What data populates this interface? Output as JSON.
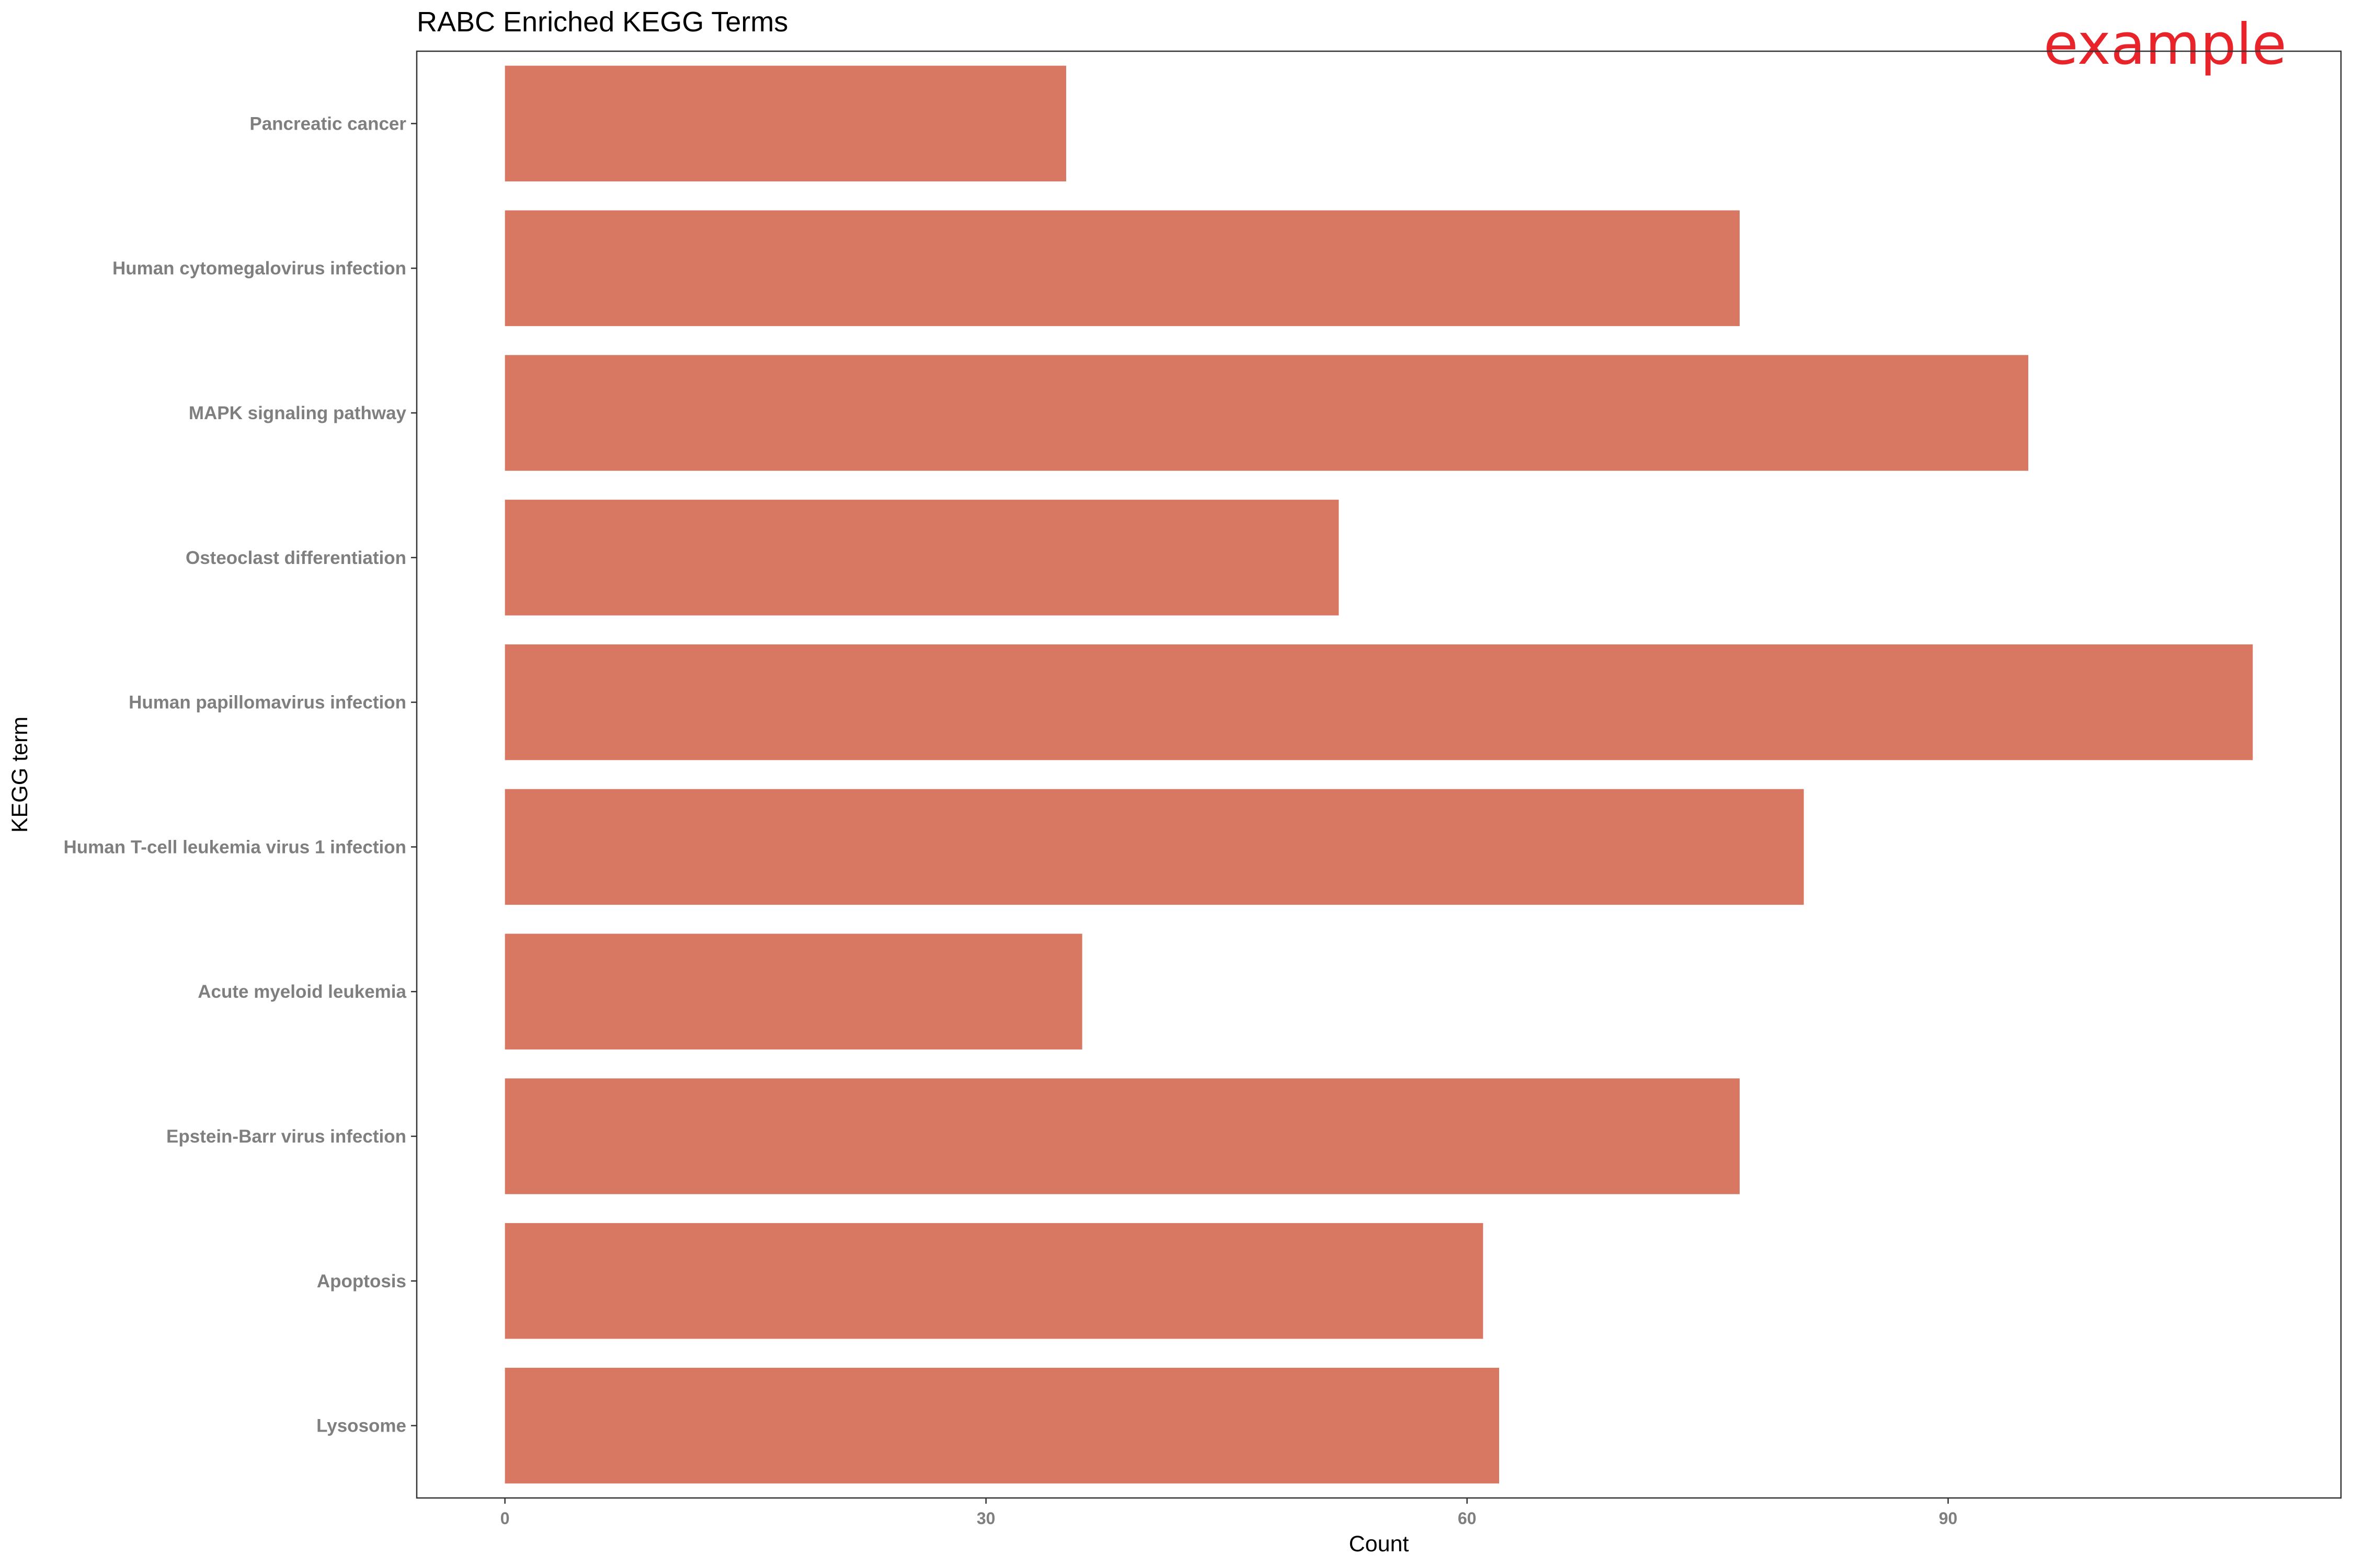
{
  "chart_data": {
    "type": "bar",
    "orientation": "horizontal",
    "title": "RABC Enriched KEGG Terms",
    "xlabel": "Count",
    "ylabel": "KEGG term",
    "categories": [
      "Pancreatic cancer",
      "Human cytomegalovirus infection",
      "MAPK signaling pathway",
      "Osteoclast differentiation",
      "Human papillomavirus infection",
      "Human T-cell leukemia virus 1 infection",
      "Acute myeloid leukemia",
      "Epstein-Barr virus infection",
      "Apoptosis",
      "Lysosome"
    ],
    "values": [
      35,
      77,
      95,
      52,
      109,
      81,
      36,
      77,
      61,
      62
    ],
    "xlim": [
      -5.5,
      114.5
    ],
    "xticks": [
      0,
      30,
      60,
      90
    ],
    "grid": false,
    "legend": "none",
    "bar_color": "#d97862"
  },
  "watermark": {
    "text": "example",
    "color": "#e8232a"
  }
}
